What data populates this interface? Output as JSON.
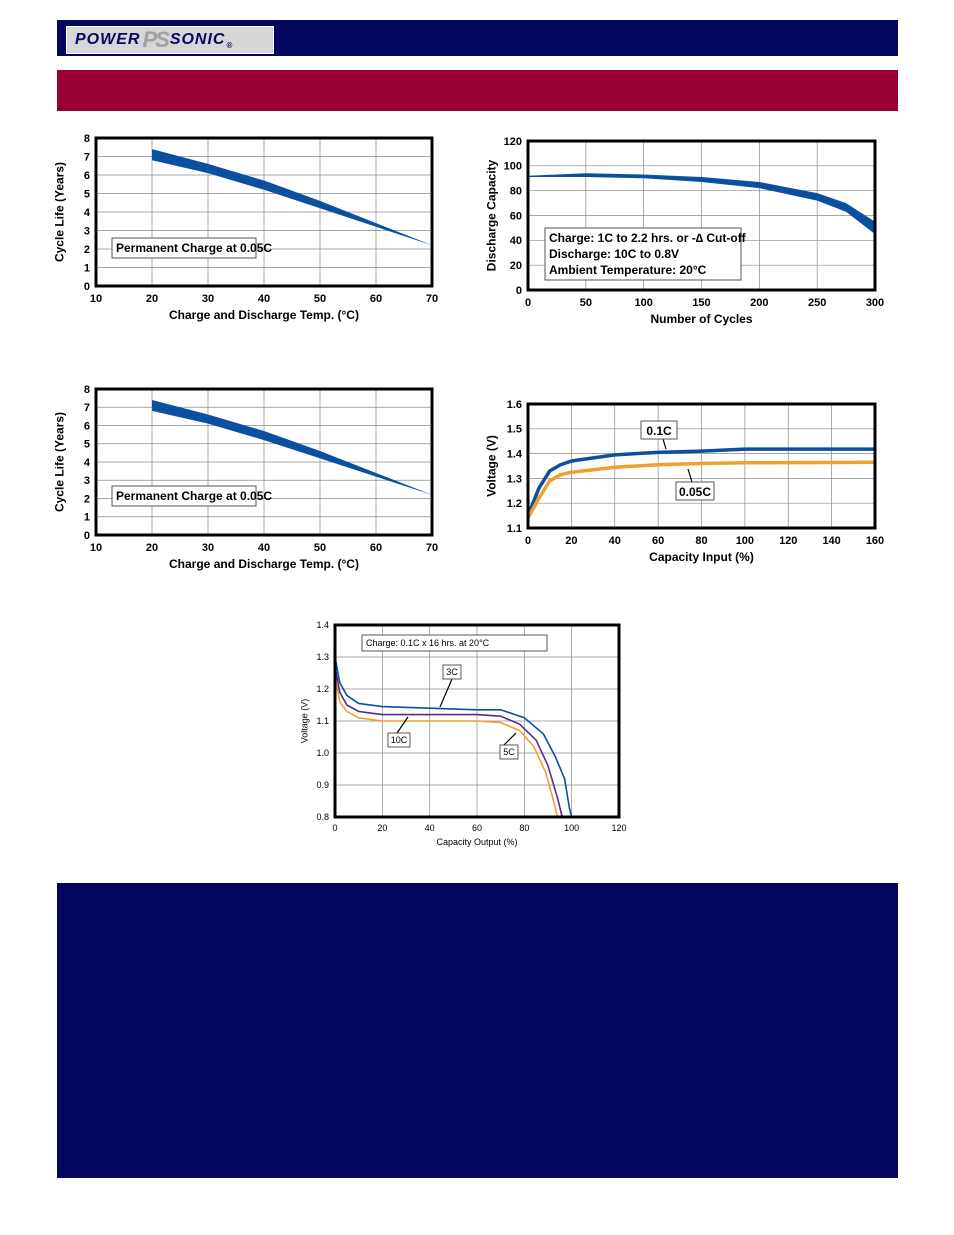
{
  "brand": {
    "logo_text_1": "POWER",
    "logo_text_2": "SONIC",
    "logo_mark": "PS",
    "registered": "®"
  },
  "colors": {
    "navy": "#05065f",
    "maroon": "#980033",
    "blue": "#0a4fa0",
    "orange": "#f0a030",
    "purple": "#5a2a8a"
  },
  "chart_data": [
    {
      "id": "c1",
      "type": "area",
      "xlabel": "Charge and Discharge Temp. (°C)",
      "ylabel": "Cycle Life (Years)",
      "xlim": [
        10,
        70
      ],
      "ylim": [
        0,
        8
      ],
      "xticks": [
        10,
        20,
        30,
        40,
        50,
        60,
        70
      ],
      "yticks": [
        0,
        1,
        2,
        3,
        4,
        5,
        6,
        7,
        8
      ],
      "grid": true,
      "band_upper": [
        [
          20,
          7.4
        ],
        [
          30,
          6.6
        ],
        [
          40,
          5.7
        ],
        [
          50,
          4.6
        ],
        [
          60,
          3.4
        ],
        [
          70,
          2.2
        ]
      ],
      "band_lower": [
        [
          20,
          6.8
        ],
        [
          30,
          6.1
        ],
        [
          40,
          5.2
        ],
        [
          50,
          4.2
        ],
        [
          60,
          3.2
        ],
        [
          70,
          2.2
        ]
      ],
      "annotations": [
        {
          "text": "Permanent Charge at 0.05C"
        }
      ]
    },
    {
      "id": "c2",
      "type": "area",
      "xlabel": "Number of Cycles",
      "ylabel": "Discharge Capacity",
      "xlim": [
        0,
        300
      ],
      "ylim": [
        0,
        120
      ],
      "xticks": [
        0,
        50,
        100,
        150,
        200,
        250,
        300
      ],
      "yticks": [
        0,
        20,
        40,
        60,
        80,
        100,
        120
      ],
      "grid": true,
      "band_upper": [
        [
          0,
          92
        ],
        [
          50,
          94
        ],
        [
          100,
          93
        ],
        [
          150,
          91
        ],
        [
          200,
          87
        ],
        [
          250,
          78
        ],
        [
          275,
          70
        ],
        [
          300,
          55
        ]
      ],
      "band_lower": [
        [
          0,
          91
        ],
        [
          50,
          91
        ],
        [
          100,
          90
        ],
        [
          150,
          87
        ],
        [
          200,
          82
        ],
        [
          250,
          72
        ],
        [
          275,
          63
        ],
        [
          300,
          45
        ]
      ],
      "annotations": [
        {
          "text": "Charge: 1C to 2.2 hrs. or -∆ Cut-off"
        },
        {
          "text": "Discharge: 10C to 0.8V"
        },
        {
          "text": "Ambient Temperature: 20°C"
        }
      ]
    },
    {
      "id": "c3",
      "type": "area",
      "xlabel": "Charge and Discharge Temp. (°C)",
      "ylabel": "Cycle Life (Years)",
      "xlim": [
        10,
        70
      ],
      "ylim": [
        0,
        8
      ],
      "xticks": [
        10,
        20,
        30,
        40,
        50,
        60,
        70
      ],
      "yticks": [
        0,
        1,
        2,
        3,
        4,
        5,
        6,
        7,
        8
      ],
      "grid": true,
      "band_upper": [
        [
          20,
          7.4
        ],
        [
          30,
          6.6
        ],
        [
          40,
          5.7
        ],
        [
          50,
          4.6
        ],
        [
          60,
          3.4
        ],
        [
          70,
          2.2
        ]
      ],
      "band_lower": [
        [
          20,
          6.8
        ],
        [
          30,
          6.1
        ],
        [
          40,
          5.2
        ],
        [
          50,
          4.2
        ],
        [
          60,
          3.2
        ],
        [
          70,
          2.2
        ]
      ],
      "annotations": [
        {
          "text": "Permanent Charge at 0.05C"
        }
      ]
    },
    {
      "id": "c4",
      "type": "line",
      "xlabel": "Capacity Input (%)",
      "ylabel": "Voltage (V)",
      "xlim": [
        0,
        160
      ],
      "ylim": [
        1.1,
        1.6
      ],
      "xticks": [
        0,
        20,
        40,
        60,
        80,
        100,
        120,
        140,
        160
      ],
      "yticks": [
        1.1,
        1.2,
        1.3,
        1.4,
        1.5,
        1.6
      ],
      "grid": true,
      "series": [
        {
          "name": "0.1C",
          "points": [
            [
              0,
              1.15
            ],
            [
              5,
              1.26
            ],
            [
              10,
              1.33
            ],
            [
              15,
              1.355
            ],
            [
              20,
              1.37
            ],
            [
              40,
              1.395
            ],
            [
              60,
              1.405
            ],
            [
              80,
              1.41
            ],
            [
              100,
              1.418
            ],
            [
              160,
              1.418
            ]
          ]
        },
        {
          "name": "0.05C",
          "points": [
            [
              0,
              1.14
            ],
            [
              5,
              1.22
            ],
            [
              10,
              1.29
            ],
            [
              15,
              1.315
            ],
            [
              20,
              1.325
            ],
            [
              40,
              1.345
            ],
            [
              60,
              1.355
            ],
            [
              80,
              1.36
            ],
            [
              100,
              1.363
            ],
            [
              160,
              1.365
            ]
          ]
        }
      ]
    },
    {
      "id": "c5",
      "type": "line",
      "xlabel": "Capacity Output (%)",
      "ylabel": "Voltage (V)",
      "xlim": [
        0,
        120
      ],
      "ylim": [
        0.8,
        1.4
      ],
      "xticks": [
        0,
        20,
        40,
        60,
        80,
        100,
        120
      ],
      "yticks": [
        0.8,
        0.9,
        1.0,
        1.1,
        1.2,
        1.3,
        1.4
      ],
      "ytick_labels": [
        "0.8",
        "0.9",
        "1.0",
        "1.1",
        "1.2",
        "1.3",
        "1.4"
      ],
      "grid": true,
      "series": [
        {
          "name": "3C",
          "points": [
            [
              0,
              1.3
            ],
            [
              2,
              1.22
            ],
            [
              5,
              1.18
            ],
            [
              10,
              1.155
            ],
            [
              20,
              1.145
            ],
            [
              40,
              1.14
            ],
            [
              60,
              1.135
            ],
            [
              70,
              1.135
            ],
            [
              80,
              1.11
            ],
            [
              88,
              1.06
            ],
            [
              93,
              0.99
            ],
            [
              97,
              0.92
            ],
            [
              99,
              0.83
            ],
            [
              100,
              0.8
            ]
          ]
        },
        {
          "name": "5C",
          "points": [
            [
              0,
              1.27
            ],
            [
              2,
              1.19
            ],
            [
              5,
              1.15
            ],
            [
              10,
              1.13
            ],
            [
              20,
              1.12
            ],
            [
              40,
              1.12
            ],
            [
              60,
              1.12
            ],
            [
              70,
              1.115
            ],
            [
              78,
              1.09
            ],
            [
              85,
              1.04
            ],
            [
              90,
              0.96
            ],
            [
              94,
              0.86
            ],
            [
              96,
              0.8
            ]
          ]
        },
        {
          "name": "10C",
          "points": [
            [
              0,
              1.24
            ],
            [
              2,
              1.16
            ],
            [
              5,
              1.13
            ],
            [
              10,
              1.11
            ],
            [
              20,
              1.1
            ],
            [
              40,
              1.1
            ],
            [
              60,
              1.1
            ],
            [
              70,
              1.095
            ],
            [
              78,
              1.07
            ],
            [
              84,
              1.02
            ],
            [
              89,
              0.94
            ],
            [
              92,
              0.86
            ],
            [
              94,
              0.8
            ]
          ]
        }
      ],
      "annotations": [
        {
          "text": "Charge: 0.1C x 16 hrs. at 20°C"
        }
      ]
    }
  ]
}
